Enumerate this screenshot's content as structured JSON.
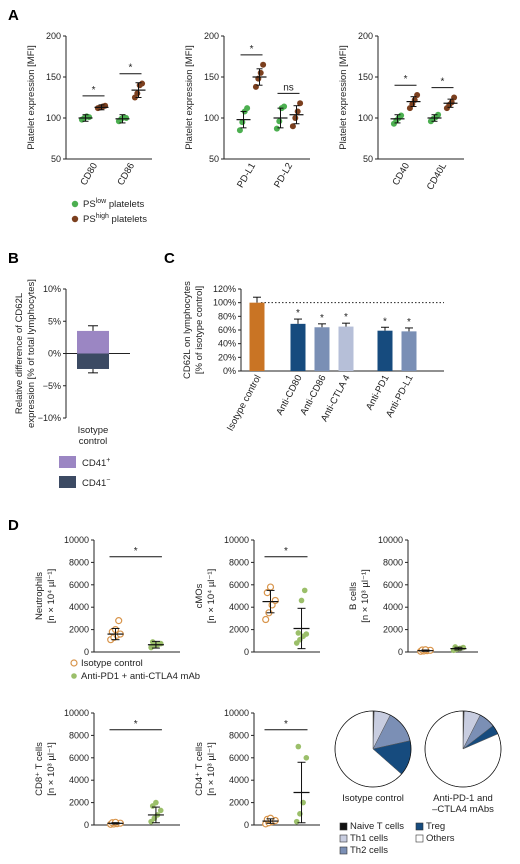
{
  "panels": {
    "A": "A",
    "B": "B",
    "C": "C",
    "D": "D"
  },
  "colors": {
    "ps_low": "#4caf50",
    "ps_high": "#7b3f1e",
    "iso_bar": "#c97424",
    "dark_blue": "#164b7e",
    "mid_blue": "#7a8fb5",
    "light_blue": "#b6bfd8",
    "cd41_pos": "#9b86c3",
    "cd41_neg": "#3c4a63",
    "iso_open": "#d8944a",
    "anti_green": "#9bbf6a"
  },
  "chart_data": [
    {
      "id": "A1",
      "type": "scatter",
      "ylabel": "Platelet expression [MFI]",
      "ylim": [
        50,
        200
      ],
      "yticks": [
        "50",
        "100",
        "150",
        "200"
      ],
      "categories": [
        "CD80",
        "CD86"
      ],
      "series": [
        {
          "name": "PS low platelets",
          "color": "#4caf50",
          "values": [
            [
              98,
              100,
              102,
              101
            ],
            [
              96,
              99,
              101,
              100
            ]
          ],
          "mean": [
            100,
            99
          ],
          "err": [
            4,
            5
          ]
        },
        {
          "name": "PS high platelets",
          "color": "#7b3f1e",
          "values": [
            [
              112,
              113,
              114,
              115
            ],
            [
              125,
              130,
              140,
              142
            ]
          ],
          "mean": [
            113,
            134
          ],
          "err": [
            3,
            9
          ]
        }
      ],
      "sig": [
        {
          "label": "*",
          "pair": 0
        },
        {
          "label": "*",
          "pair": 1
        }
      ]
    },
    {
      "id": "A2",
      "type": "scatter",
      "ylabel": "Platelet expression [MFI]",
      "ylim": [
        50,
        200
      ],
      "yticks": [
        "50",
        "100",
        "150",
        "200"
      ],
      "categories": [
        "PD-L1",
        "PD-L2"
      ],
      "series": [
        {
          "name": "PS low platelets",
          "color": "#4caf50",
          "values": [
            [
              85,
              95,
              108,
              112
            ],
            [
              87,
              96,
              112,
              114
            ]
          ],
          "mean": [
            98,
            100
          ],
          "err": [
            10,
            12
          ]
        },
        {
          "name": "PS high platelets",
          "color": "#7b3f1e",
          "values": [
            [
              138,
              148,
              155,
              165
            ],
            [
              90,
              100,
              108,
              118
            ]
          ],
          "mean": [
            150,
            104
          ],
          "err": [
            10,
            11
          ]
        }
      ],
      "sig": [
        {
          "label": "*",
          "pair": 0
        },
        {
          "label": "ns",
          "pair": 1
        }
      ]
    },
    {
      "id": "A3",
      "type": "scatter",
      "ylabel": "Platelet expression [MFI]",
      "ylim": [
        50,
        200
      ],
      "yticks": [
        "50",
        "100",
        "150",
        "200"
      ],
      "categories": [
        "CD40",
        "CD40L"
      ],
      "series": [
        {
          "name": "PS low platelets",
          "color": "#4caf50",
          "values": [
            [
              93,
              97,
              100,
              103
            ],
            [
              96,
              99,
              101,
              104
            ]
          ],
          "mean": [
            99,
            100
          ],
          "err": [
            5,
            4
          ]
        },
        {
          "name": "PS high platelets",
          "color": "#7b3f1e",
          "values": [
            [
              112,
              117,
              122,
              128
            ],
            [
              112,
              116,
              119,
              125
            ]
          ],
          "mean": [
            120,
            118
          ],
          "err": [
            6,
            5
          ]
        }
      ],
      "sig": [
        {
          "label": "*",
          "pair": 0
        },
        {
          "label": "*",
          "pair": 1
        }
      ]
    },
    {
      "id": "B",
      "type": "bar",
      "ylabel": "Relative difference of CD62L expression [% of total lymphocytes]",
      "ylim": [
        -10,
        10
      ],
      "yticks": [
        "−10%",
        "−5%",
        "0%",
        "5%",
        "10%"
      ],
      "categories": [
        "Isotype control"
      ],
      "series": [
        {
          "name": "CD41+",
          "color": "#9b86c3",
          "values": [
            3.5
          ],
          "err": [
            0.8
          ]
        },
        {
          "name": "CD41−",
          "color": "#3c4a63",
          "values": [
            -2.4
          ],
          "err": [
            0.6
          ]
        }
      ]
    },
    {
      "id": "C",
      "type": "bar",
      "ylabel": "CD62L on lymphocytes [% of isotype control]",
      "ylim": [
        0,
        120
      ],
      "yticks": [
        "0%",
        "20%",
        "40%",
        "60%",
        "80%",
        "100%",
        "120%"
      ],
      "categories": [
        "Isotype control",
        "Anti-CD80",
        "Anti-CD86",
        "Anti-CTLA 4",
        "Anti-PD1",
        "Anti-PD-L1"
      ],
      "values": [
        100,
        69,
        64,
        65,
        59,
        58
      ],
      "err": [
        8,
        7,
        5,
        5,
        5,
        5
      ],
      "bar_colors": [
        "#c97424",
        "#164b7e",
        "#7a8fb5",
        "#b6bfd8",
        "#164b7e",
        "#7a8fb5"
      ],
      "sig": [
        "",
        "*",
        "*",
        "*",
        "*",
        "*"
      ],
      "reference_line": 100
    },
    {
      "id": "D1",
      "type": "scatter",
      "ylabel": "Neutrophils",
      "yunit": "[n × 10⁴ µl⁻¹]",
      "ylim": [
        0,
        10000
      ],
      "yticks": [
        "0",
        "2000",
        "4000",
        "6000",
        "8000",
        "10000"
      ],
      "groups": [
        {
          "name": "Isotype control",
          "values": [
            1100,
            1300,
            1500,
            1600,
            1800,
            2000,
            2800
          ],
          "mean": 1600,
          "err": 500
        },
        {
          "name": "Anti-PD1 + anti-CTLA4 mAb",
          "values": [
            400,
            550,
            650,
            750,
            900
          ],
          "mean": 650,
          "err": 300
        }
      ],
      "sig": "*"
    },
    {
      "id": "D2",
      "type": "scatter",
      "ylabel": "cMOs",
      "yunit": "[n × 10⁴ µl⁻¹]",
      "ylim": [
        0,
        10000
      ],
      "yticks": [
        "0",
        "2000",
        "4000",
        "6000",
        "8000",
        "10000"
      ],
      "groups": [
        {
          "name": "Isotype control",
          "values": [
            2900,
            3500,
            4200,
            4600,
            5300,
            5800
          ],
          "mean": 4500,
          "err": 1000
        },
        {
          "name": "Anti-PD1 + anti-CTLA4 mAb",
          "values": [
            800,
            1100,
            1400,
            1600,
            1700,
            4600,
            5500
          ],
          "mean": 2100,
          "err": 1800
        }
      ],
      "sig": "*"
    },
    {
      "id": "D3",
      "type": "scatter",
      "ylabel": "B cells",
      "yunit": "[n × 10³ µl⁻¹]",
      "ylim": [
        0,
        10000
      ],
      "yticks": [
        "0",
        "2000",
        "4000",
        "6000",
        "8000",
        "10000"
      ],
      "groups": [
        {
          "name": "Isotype control",
          "values": [
            60,
            90,
            120,
            150,
            180,
            200
          ],
          "mean": 120,
          "err": 60
        },
        {
          "name": "Anti-PD1 + anti-CTLA4 mAb",
          "values": [
            150,
            250,
            320,
            400,
            450
          ],
          "mean": 300,
          "err": 120
        }
      ],
      "sig": ""
    },
    {
      "id": "D4",
      "type": "scatter",
      "ylabel": "CD8⁺ T cells",
      "yunit": "[n × 10³ µl⁻¹]",
      "ylim": [
        0,
        10000
      ],
      "yticks": [
        "0",
        "2000",
        "4000",
        "6000",
        "8000",
        "10000"
      ],
      "groups": [
        {
          "name": "Isotype control",
          "values": [
            60,
            90,
            120,
            160,
            200,
            240
          ],
          "mean": 150,
          "err": 60
        },
        {
          "name": "Anti-PD1 + anti-CTLA4 mAb",
          "values": [
            300,
            600,
            900,
            1300,
            1700,
            2000
          ],
          "mean": 900,
          "err": 700
        }
      ],
      "sig": "*"
    },
    {
      "id": "D5",
      "type": "scatter",
      "ylabel": "CD4⁺ T cells",
      "yunit": "[n × 10³ µl⁻¹]",
      "ylim": [
        0,
        10000
      ],
      "yticks": [
        "0",
        "2000",
        "4000",
        "6000",
        "8000",
        "10000"
      ],
      "groups": [
        {
          "name": "Isotype control",
          "values": [
            100,
            200,
            300,
            400,
            500,
            600
          ],
          "mean": 350,
          "err": 200
        },
        {
          "name": "Anti-PD1 + anti-CTLA4 mAb",
          "values": [
            300,
            1000,
            2000,
            6000,
            7000
          ],
          "mean": 2900,
          "err": 2700
        }
      ],
      "sig": "*"
    },
    {
      "id": "D6",
      "type": "pie",
      "title": "Isotype control",
      "slices": [
        {
          "name": "Naive T cells",
          "value": 0.5,
          "color": "#111111"
        },
        {
          "name": "Th1 cells",
          "value": 7,
          "color": "#c8cde0"
        },
        {
          "name": "Th2 cells",
          "value": 14,
          "color": "#7b8fb5"
        },
        {
          "name": "Treg",
          "value": 15,
          "color": "#164b7e"
        },
        {
          "name": "Others",
          "value": 63.5,
          "color": "#ffffff"
        }
      ]
    },
    {
      "id": "D7",
      "type": "pie",
      "title": "Anti-PD-1 and –CTLA4 mAbs",
      "slices": [
        {
          "name": "Naive T cells",
          "value": 0.5,
          "color": "#111111"
        },
        {
          "name": "Th1 cells",
          "value": 7,
          "color": "#c8cde0"
        },
        {
          "name": "Th2 cells",
          "value": 7,
          "color": "#7b8fb5"
        },
        {
          "name": "Treg",
          "value": 4,
          "color": "#164b7e"
        },
        {
          "name": "Others",
          "value": 81.5,
          "color": "#ffffff"
        }
      ]
    }
  ],
  "legendA": {
    "ps_low": "PS",
    "ps_low_sup": "low",
    "ps_low_rest": " platelets",
    "ps_high": "PS",
    "ps_high_sup": "high",
    "ps_high_rest": " platelets"
  },
  "legendB": {
    "pos": "CD41",
    "pos_sup": "+",
    "neg": "CD41",
    "neg_sup": "−"
  },
  "legendD": {
    "iso": "Isotype control",
    "anti": "Anti-PD1 + anti-CTLA4 mAb"
  },
  "legendPie": [
    "Naive T cells",
    "Treg",
    "Th1 cells",
    "Others",
    "Th2 cells"
  ]
}
